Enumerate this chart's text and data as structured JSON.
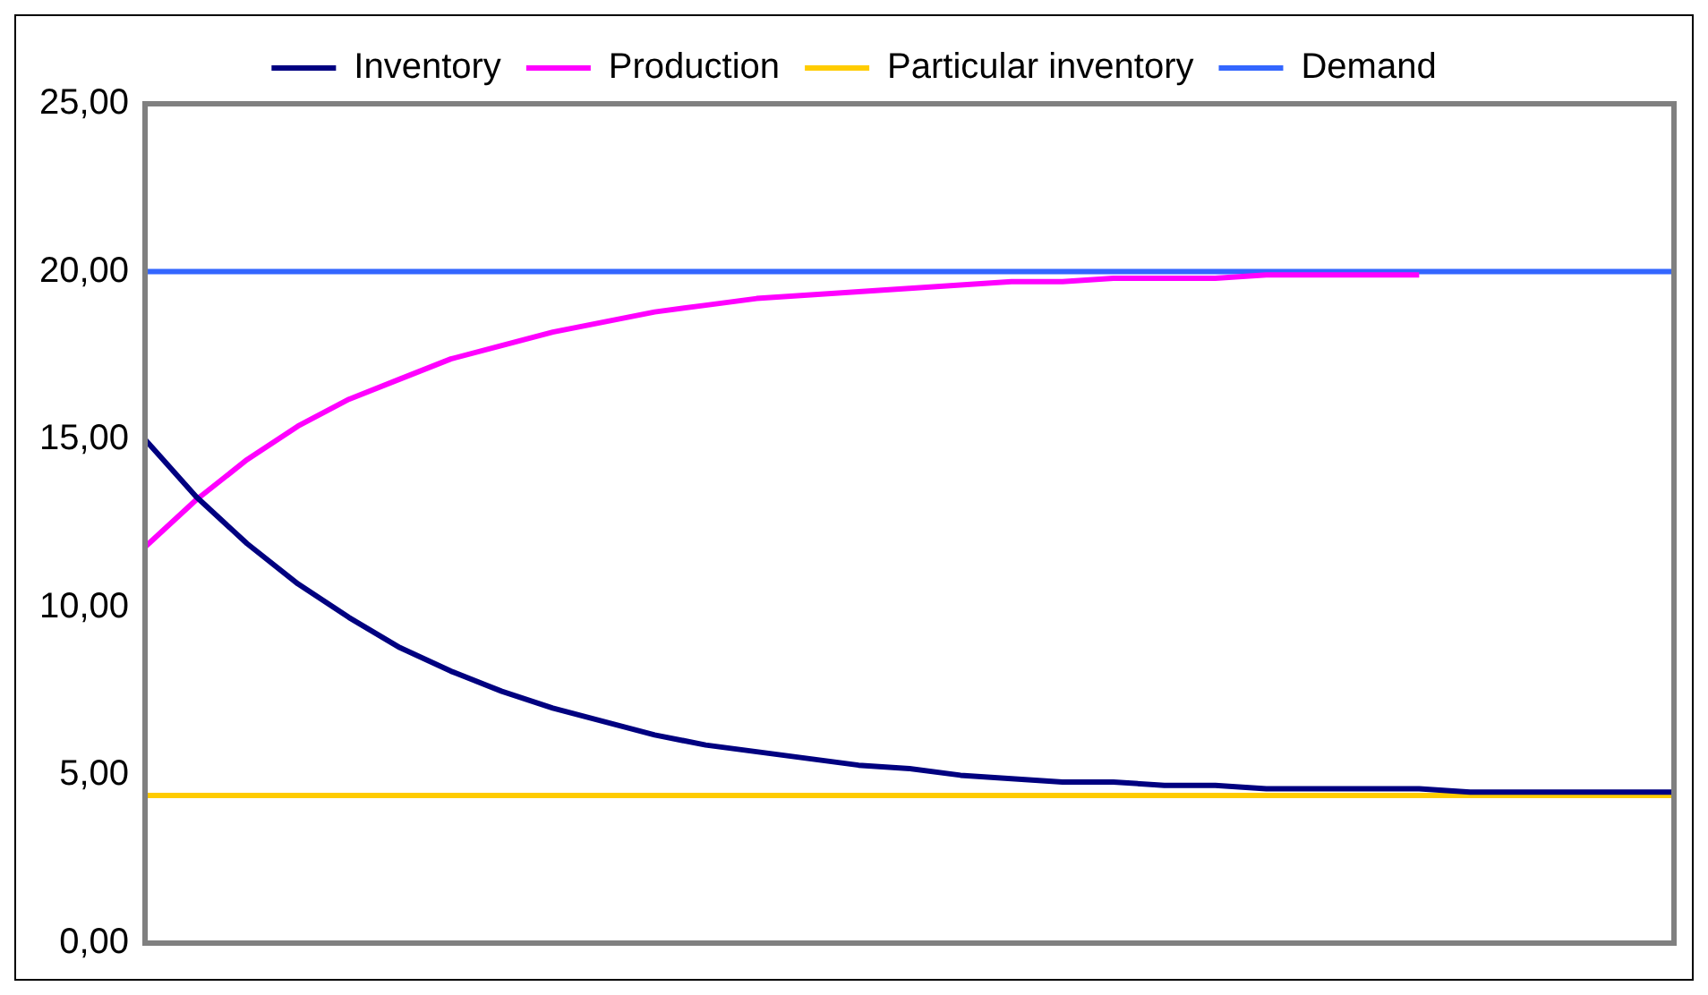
{
  "chart_data": {
    "type": "line",
    "categories": [
      null,
      null,
      null,
      null,
      null,
      null,
      null,
      null,
      null,
      null,
      null,
      null,
      null,
      null,
      null,
      null,
      null,
      null,
      null,
      null,
      null,
      null,
      null,
      null,
      null,
      null,
      null,
      null,
      null,
      null,
      null
    ],
    "series": [
      {
        "name": "Inventory",
        "color": "#000080",
        "values": [
          15.0,
          13.3,
          11.9,
          10.7,
          9.7,
          8.8,
          8.1,
          7.5,
          7.0,
          6.6,
          6.2,
          5.9,
          5.7,
          5.5,
          5.3,
          5.2,
          5.0,
          4.9,
          4.8,
          4.8,
          4.7,
          4.7,
          4.6,
          4.6,
          4.6,
          4.6,
          4.5,
          4.5,
          4.5,
          4.5,
          4.5
        ]
      },
      {
        "name": "Production",
        "color": "#ff00ff",
        "values": [
          11.8,
          13.2,
          14.4,
          15.4,
          16.2,
          16.8,
          17.4,
          17.8,
          18.2,
          18.5,
          18.8,
          19.0,
          19.2,
          19.3,
          19.4,
          19.5,
          19.6,
          19.7,
          19.7,
          19.8,
          19.8,
          19.8,
          19.9,
          19.9,
          19.9,
          19.9,
          null,
          null,
          null,
          null,
          null
        ]
      },
      {
        "name": "Particular inventory",
        "color": "#ffcc00",
        "values": [
          4.4,
          4.4,
          4.4,
          4.4,
          4.4,
          4.4,
          4.4,
          4.4,
          4.4,
          4.4,
          4.4,
          4.4,
          4.4,
          4.4,
          4.4,
          4.4,
          4.4,
          4.4,
          4.4,
          4.4,
          4.4,
          4.4,
          4.4,
          4.4,
          4.4,
          4.4,
          4.4,
          4.4,
          4.4,
          4.4,
          4.4
        ]
      },
      {
        "name": "Demand",
        "color": "#3366ff",
        "values": [
          20,
          20,
          20,
          20,
          20,
          20,
          20,
          20,
          20,
          20,
          20,
          20,
          20,
          20,
          20,
          20,
          20,
          20,
          20,
          20,
          20,
          20,
          20,
          20,
          20,
          20,
          20,
          20,
          20,
          20,
          20
        ]
      }
    ],
    "ylim": [
      0,
      25
    ],
    "yticks": [
      {
        "value": 0,
        "label": "0,00"
      },
      {
        "value": 5,
        "label": "5,00"
      },
      {
        "value": 10,
        "label": "10,00"
      },
      {
        "value": 15,
        "label": "15,00"
      },
      {
        "value": 20,
        "label": "20,00"
      },
      {
        "value": 25,
        "label": "25,00"
      }
    ],
    "grid": false,
    "legend": "top",
    "marker": "none",
    "line_style": "solid",
    "tick_labels": "y"
  }
}
